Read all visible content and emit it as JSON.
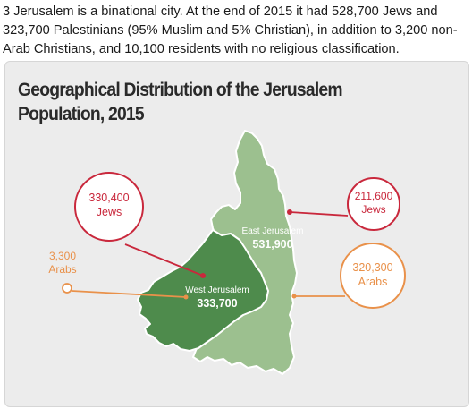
{
  "intro_text": "3 Jerusalem is a binational city. At the end of 2015 it had 528,700 Jews and 323,700 Palestinians (95% Muslim and 5% Christian), in addition to 3,200 non-Arab Christians, and 10,100 residents with no religious classification.",
  "infographic": {
    "title": "Geographical Distribution of the Jerusalem Population, 2015",
    "west_jerusalem": {
      "name": "West Jerusalem",
      "population": "333,700",
      "jews": {
        "value": "330,400",
        "label": "Jews"
      },
      "arabs": {
        "value": "3,300",
        "label": "Arabs"
      }
    },
    "east_jerusalem": {
      "name": "East Jerusalem",
      "population": "531,900",
      "jews": {
        "value": "211,600",
        "label": "Jews"
      },
      "arabs": {
        "value": "320,300",
        "label": "Arabs"
      }
    },
    "colors": {
      "west_region": "#4e8b4c",
      "east_region": "#9cc08f",
      "jews_callout": "#c9283c",
      "arabs_callout": "#e9914a",
      "card_background": "#ececec"
    }
  }
}
